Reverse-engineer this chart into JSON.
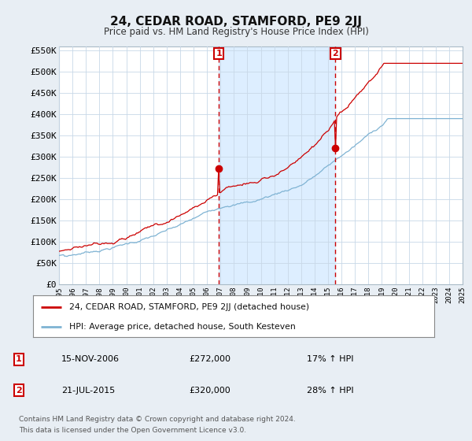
{
  "title": "24, CEDAR ROAD, STAMFORD, PE9 2JJ",
  "subtitle": "Price paid vs. HM Land Registry's House Price Index (HPI)",
  "ylim": [
    0,
    560000
  ],
  "yticks": [
    0,
    50000,
    100000,
    150000,
    200000,
    250000,
    300000,
    350000,
    400000,
    450000,
    500000,
    550000
  ],
  "ytick_labels": [
    "£0",
    "£50K",
    "£100K",
    "£150K",
    "£200K",
    "£250K",
    "£300K",
    "£350K",
    "£400K",
    "£450K",
    "£500K",
    "£550K"
  ],
  "property_color": "#cc0000",
  "hpi_color": "#7fb3d3",
  "shade_color": "#ddeeff",
  "marker1_year": 2006.88,
  "marker1_value": 272000,
  "marker2_year": 2015.55,
  "marker2_value": 320000,
  "marker1_date": "15-NOV-2006",
  "marker1_price": "£272,000",
  "marker1_hpi": "17% ↑ HPI",
  "marker2_date": "21-JUL-2015",
  "marker2_price": "£320,000",
  "marker2_hpi": "28% ↑ HPI",
  "legend_property": "24, CEDAR ROAD, STAMFORD, PE9 2JJ (detached house)",
  "legend_hpi": "HPI: Average price, detached house, South Kesteven",
  "footer1": "Contains HM Land Registry data © Crown copyright and database right 2024.",
  "footer2": "This data is licensed under the Open Government Licence v3.0.",
  "background_color": "#e8eef4",
  "plot_bg_color": "#ffffff",
  "grid_color": "#c8d8e8"
}
